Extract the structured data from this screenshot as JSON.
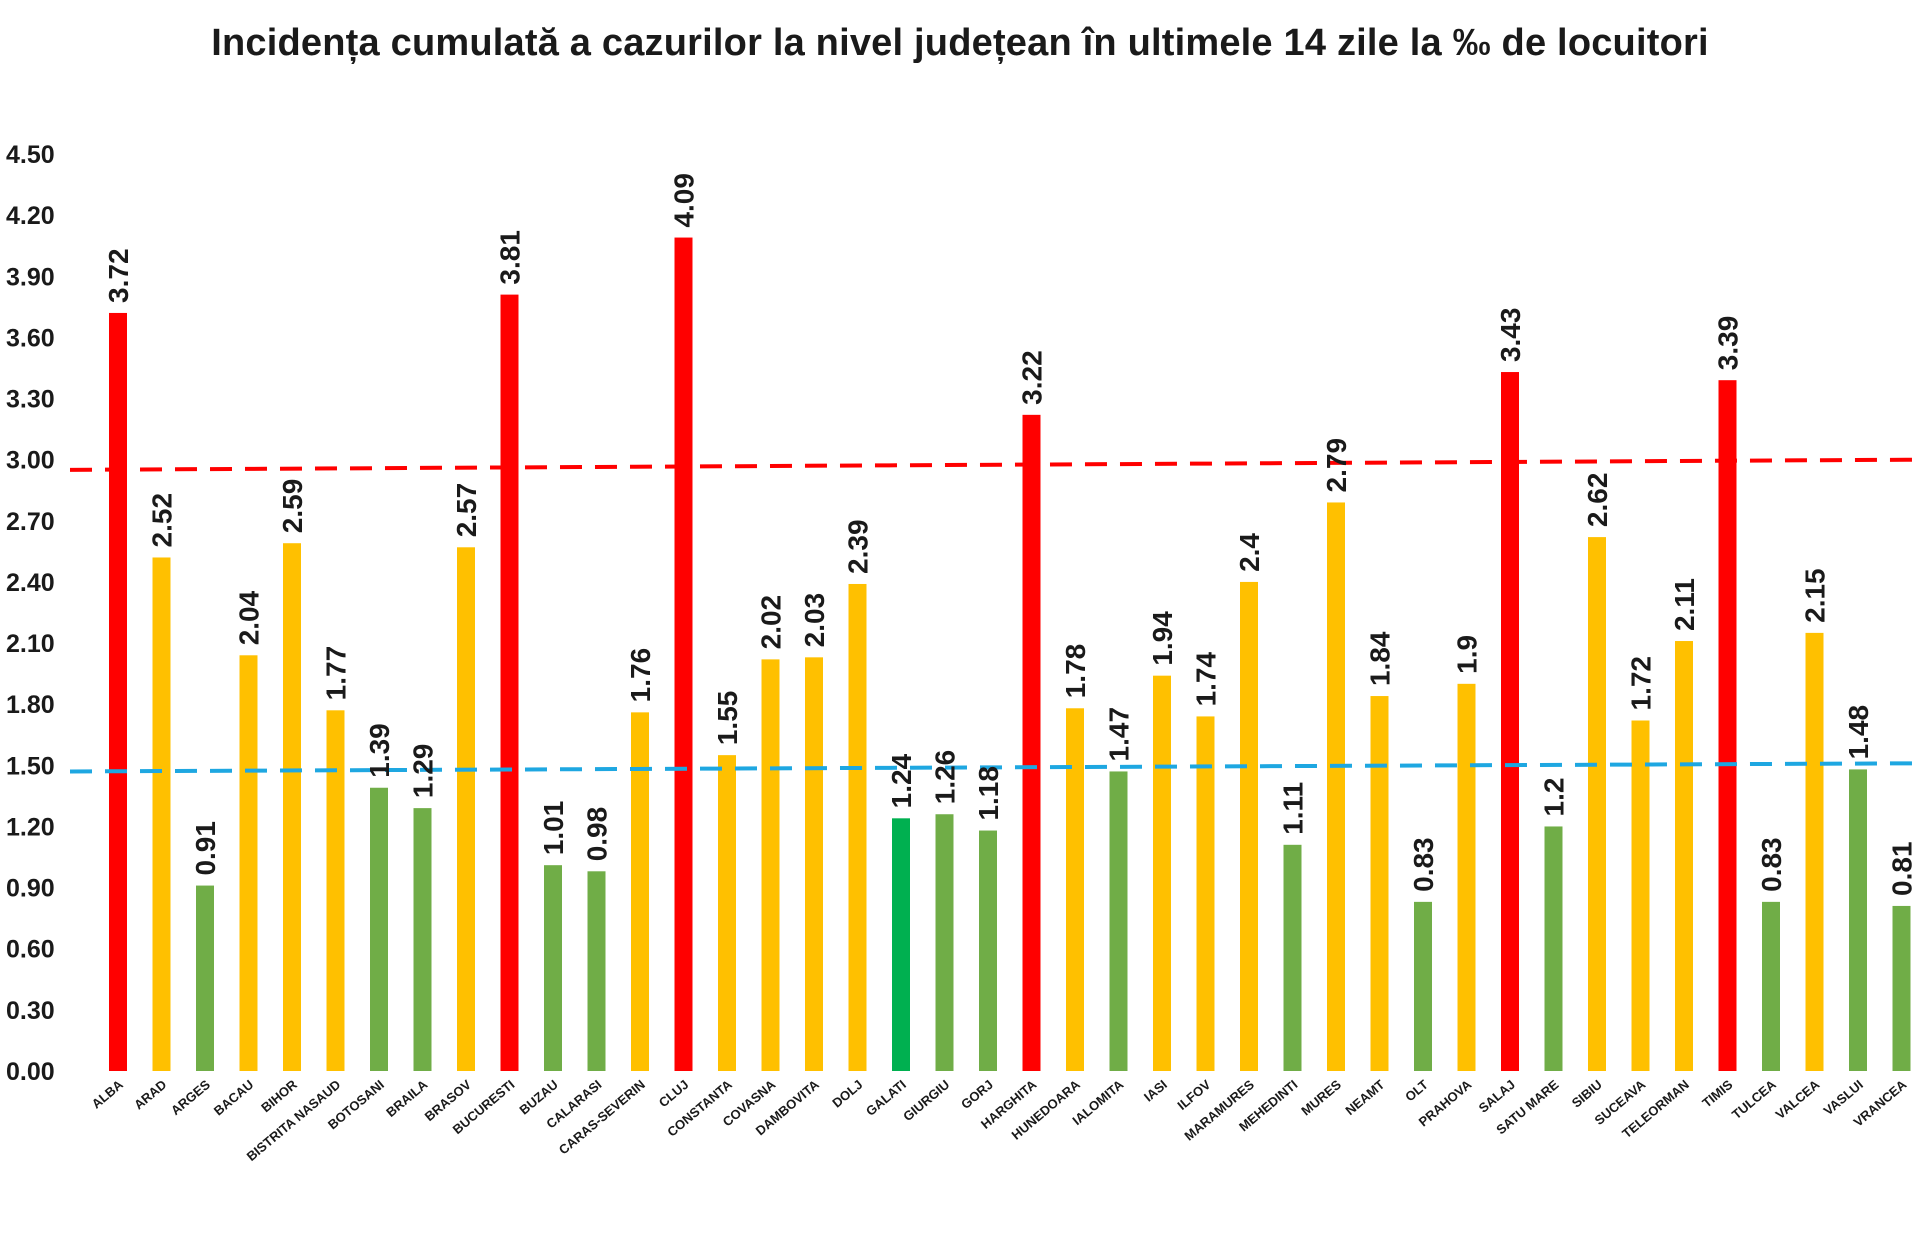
{
  "chart_data": {
    "type": "bar",
    "title": "Incidența cumulată a cazurilor la nivel județean în ultimele 14 zile la ‰ de locuitori",
    "xlabel": "",
    "ylabel": "",
    "ylim": [
      0,
      4.5
    ],
    "yticks": [
      "0.00",
      "0.30",
      "0.60",
      "0.90",
      "1.20",
      "1.50",
      "1.80",
      "2.10",
      "2.40",
      "2.70",
      "3.00",
      "3.30",
      "3.60",
      "3.90",
      "4.20",
      "4.50"
    ],
    "categories": [
      "ALBA",
      "ARAD",
      "ARGES",
      "BACAU",
      "BIHOR",
      "BISTRITA NASAUD",
      "BOTOSANI",
      "BRAILA",
      "BRASOV",
      "BUCURESTI",
      "BUZAU",
      "CALARASI",
      "CARAS-SEVERIN",
      "CLUJ",
      "CONSTANTA",
      "COVASNA",
      "DAMBOVITA",
      "DOLJ",
      "GALATI",
      "GIURGIU",
      "GORJ",
      "HARGHITA",
      "HUNEDOARA",
      "IALOMITA",
      "IASI",
      "ILFOV",
      "MARAMURES",
      "MEHEDINTI",
      "MURES",
      "NEAMT",
      "OLT",
      "PRAHOVA",
      "SALAJ",
      "SATU MARE",
      "SIBIU",
      "SUCEAVA",
      "TELEORMAN",
      "TIMIS",
      "TULCEA",
      "VALCEA",
      "VASLUI",
      "VRANCEA"
    ],
    "values": [
      3.72,
      2.52,
      0.91,
      2.04,
      2.59,
      1.77,
      1.39,
      1.29,
      2.57,
      3.81,
      1.01,
      0.98,
      1.76,
      4.09,
      1.55,
      2.02,
      2.03,
      2.39,
      1.24,
      1.26,
      1.18,
      3.22,
      1.78,
      1.47,
      1.94,
      1.74,
      2.4,
      1.11,
      2.79,
      1.84,
      0.83,
      1.9,
      3.43,
      1.2,
      2.62,
      1.72,
      2.11,
      3.39,
      0.83,
      2.15,
      1.48,
      0.81
    ],
    "data_labels": [
      "3.72",
      "2.52",
      "0.91",
      "2.04",
      "2.59",
      "1.77",
      "1.39",
      "1.29",
      "2.57",
      "3.81",
      "1.01",
      "0.98",
      "1.76",
      "4.09",
      "1.55",
      "2.02",
      "2.03",
      "2.39",
      "1.24",
      "1.26",
      "1.18",
      "3.22",
      "1.78",
      "1.47",
      "1.94",
      "1.74",
      "2.4",
      "1.11",
      "2.79",
      "1.84",
      "0.83",
      "1.9",
      "3.43",
      "1.2",
      "2.62",
      "1.72",
      "2.11",
      "3.39",
      "0.83",
      "2.15",
      "1.48",
      "0.81"
    ],
    "bar_colors": {
      "red": "#ff0000",
      "yellow": "#ffc000",
      "green": "#70ad47",
      "bright_green": "#00b050"
    },
    "bar_color_keys": [
      "red",
      "yellow",
      "green",
      "yellow",
      "yellow",
      "yellow",
      "green",
      "green",
      "yellow",
      "red",
      "green",
      "green",
      "yellow",
      "red",
      "yellow",
      "yellow",
      "yellow",
      "yellow",
      "bright_green",
      "green",
      "green",
      "red",
      "yellow",
      "green",
      "yellow",
      "yellow",
      "yellow",
      "green",
      "yellow",
      "yellow",
      "green",
      "yellow",
      "red",
      "green",
      "yellow",
      "yellow",
      "yellow",
      "red",
      "green",
      "yellow",
      "green",
      "green"
    ],
    "reference_lines": [
      {
        "color": "#ff0000",
        "y_start": 2.95,
        "y_end": 3.0,
        "style": "dashed"
      },
      {
        "color": "#1ea7e1",
        "y_start": 1.47,
        "y_end": 1.51,
        "style": "dashed"
      }
    ],
    "grid": false,
    "legend": "none"
  }
}
